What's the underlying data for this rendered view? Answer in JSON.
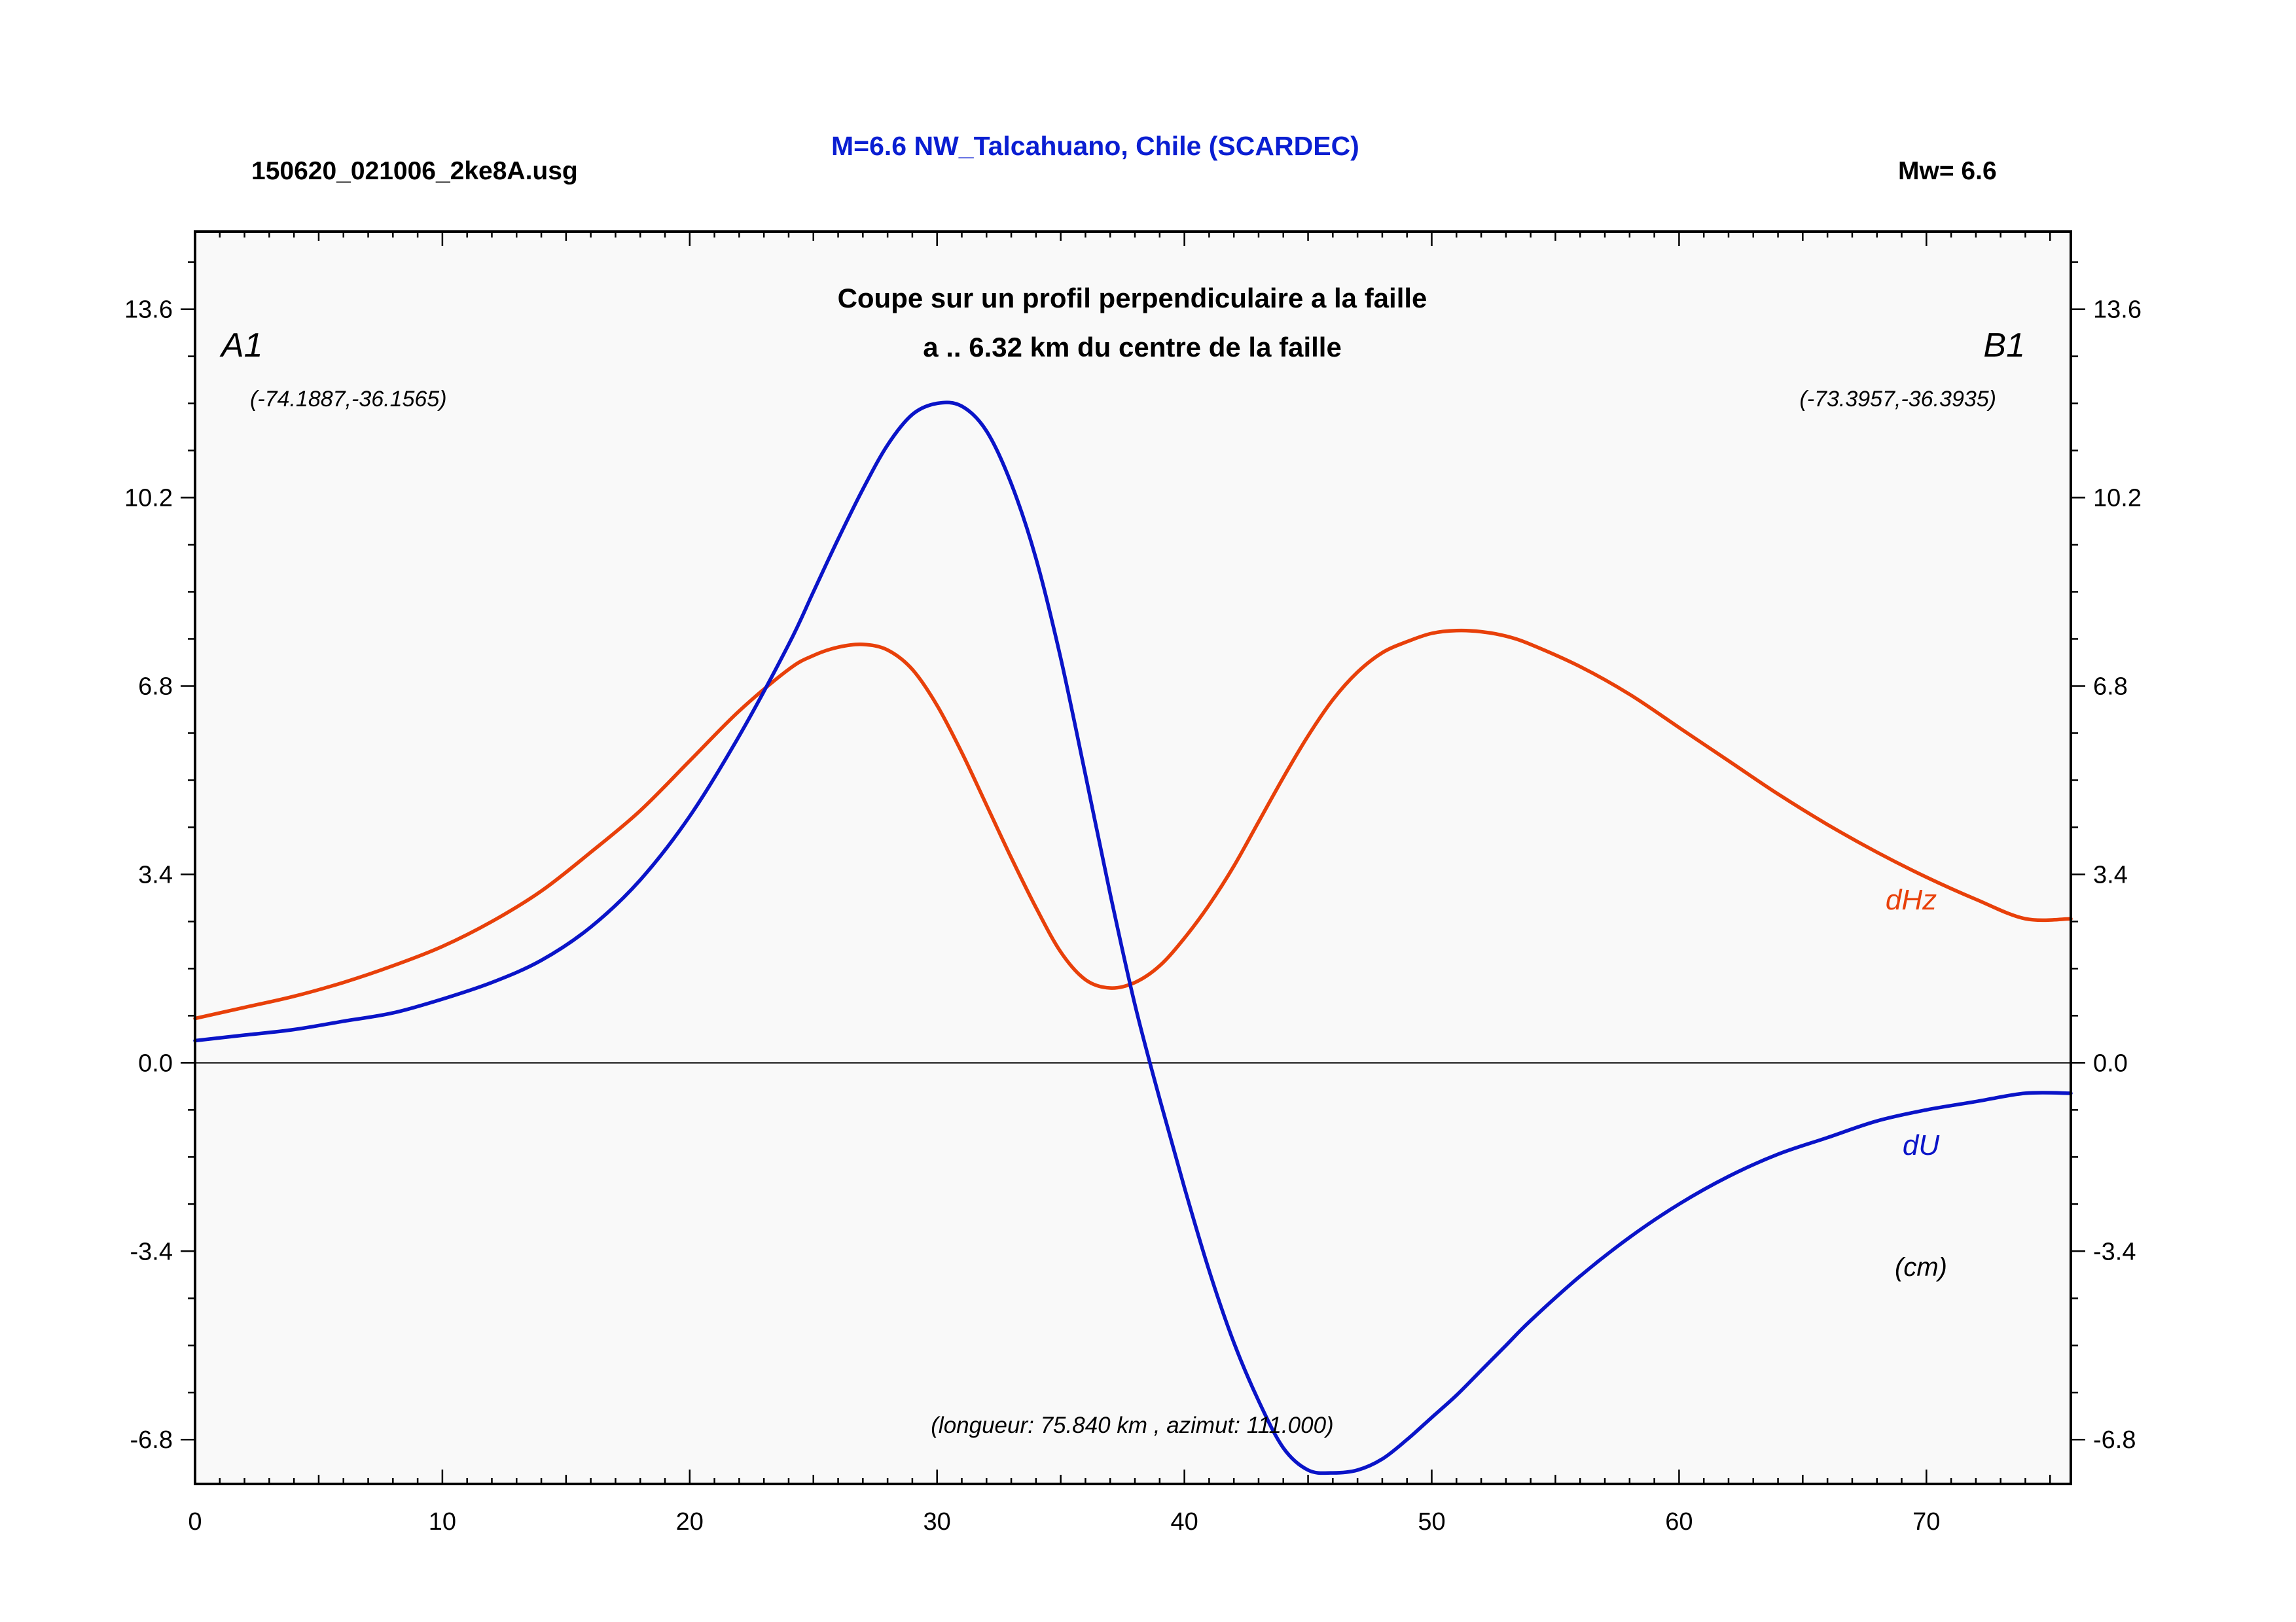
{
  "header": {
    "file_label": "150620_021006_2ke8A.usg",
    "event_title": "M=6.6 NW_Talcahuano, Chile (SCARDEC)",
    "magnitude_label": "Mw= 6.6"
  },
  "chart_data": {
    "type": "line",
    "title": "Coupe sur un profil perpendiculaire a la faille",
    "subtitle": "a .. 6.32 km du centre de la faille",
    "xlim": [
      0,
      75.84
    ],
    "ylim": [
      -7.6,
      15.0
    ],
    "x_ticks": [
      0,
      10,
      20,
      30,
      40,
      50,
      60,
      70
    ],
    "x_tick_labels": [
      "0",
      "10",
      "20",
      "30",
      "40",
      "50",
      "60",
      "70"
    ],
    "y_ticks": [
      -6.8,
      -3.4,
      0.0,
      3.4,
      6.8,
      10.2,
      13.6
    ],
    "y_tick_labels": [
      "-6.8",
      "-3.4",
      "0.0",
      "3.4",
      "6.8",
      "10.2",
      "13.6"
    ],
    "zero_line": true,
    "grid": false,
    "endpoint_left": {
      "label": "A1",
      "coords": "(-74.1887,-36.1565)"
    },
    "endpoint_right": {
      "label": "B1",
      "coords": "(-73.3957,-36.3935)"
    },
    "profile_info": "(longueur: 75.840 km , azimut: 111.000)",
    "unit_label": "(cm)",
    "series": [
      {
        "name": "dHz",
        "color": "#e8400a",
        "x": [
          0,
          2,
          4,
          6,
          8,
          10,
          12,
          14,
          16,
          18,
          20,
          22,
          24,
          25,
          26,
          27,
          28,
          29,
          30,
          31,
          32,
          33,
          34,
          35,
          36,
          37,
          38,
          39,
          40,
          41,
          42,
          43,
          44,
          45,
          46,
          47,
          48,
          49,
          50,
          51,
          52,
          53,
          54,
          56,
          58,
          60,
          62,
          64,
          66,
          68,
          70,
          72,
          74,
          75.84
        ],
        "values": [
          0.8,
          1.0,
          1.2,
          1.45,
          1.75,
          2.1,
          2.55,
          3.1,
          3.8,
          4.55,
          5.45,
          6.35,
          7.1,
          7.35,
          7.5,
          7.55,
          7.45,
          7.1,
          6.45,
          5.6,
          4.65,
          3.7,
          2.8,
          2.0,
          1.5,
          1.35,
          1.45,
          1.75,
          2.25,
          2.85,
          3.55,
          4.35,
          5.15,
          5.9,
          6.55,
          7.05,
          7.4,
          7.6,
          7.75,
          7.8,
          7.78,
          7.7,
          7.55,
          7.15,
          6.65,
          6.05,
          5.45,
          4.85,
          4.3,
          3.8,
          3.35,
          2.95,
          2.6,
          2.6
        ]
      },
      {
        "name": "dU",
        "color": "#0a14c8",
        "x": [
          0,
          2,
          4,
          6,
          8,
          10,
          12,
          14,
          16,
          18,
          20,
          22,
          24,
          25,
          26,
          27,
          28,
          29,
          30,
          31,
          32,
          33,
          34,
          35,
          36,
          37,
          38,
          39,
          40,
          41,
          42,
          43,
          44,
          45,
          46,
          47,
          48,
          49,
          50,
          51,
          52,
          53,
          54,
          56,
          58,
          60,
          62,
          64,
          66,
          68,
          70,
          72,
          74,
          75.84
        ],
        "values": [
          0.4,
          0.5,
          0.6,
          0.75,
          0.9,
          1.15,
          1.45,
          1.85,
          2.45,
          3.3,
          4.45,
          5.9,
          7.55,
          8.5,
          9.45,
          10.35,
          11.15,
          11.7,
          11.9,
          11.85,
          11.4,
          10.45,
          9.1,
          7.3,
          5.2,
          3.05,
          1.05,
          -0.65,
          -2.25,
          -3.75,
          -5.05,
          -6.1,
          -6.95,
          -7.35,
          -7.4,
          -7.35,
          -7.15,
          -6.8,
          -6.4,
          -6.0,
          -5.55,
          -5.1,
          -4.65,
          -3.85,
          -3.15,
          -2.55,
          -2.05,
          -1.65,
          -1.35,
          -1.05,
          -0.85,
          -0.7,
          -0.55,
          -0.55
        ]
      }
    ]
  }
}
